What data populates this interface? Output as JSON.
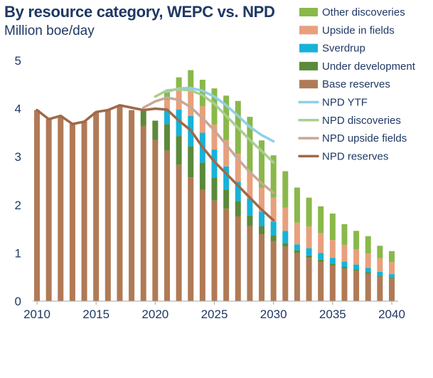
{
  "chart_data": {
    "type": "bar",
    "title": "By resource category,  WEPC vs. NPD",
    "subtitle": "Million boe/day",
    "x": [
      2010,
      2011,
      2012,
      2013,
      2014,
      2015,
      2016,
      2017,
      2018,
      2019,
      2020,
      2021,
      2022,
      2023,
      2024,
      2025,
      2026,
      2027,
      2028,
      2029,
      2030,
      2031,
      2032,
      2033,
      2034,
      2035,
      2036,
      2037,
      2038,
      2039,
      2040
    ],
    "x_ticks": [
      2010,
      2015,
      2020,
      2025,
      2030,
      2035,
      2040
    ],
    "y_ticks": [
      0,
      1,
      2,
      3,
      4,
      5
    ],
    "ylim": [
      0,
      5
    ],
    "bar_series": [
      {
        "name": "Base reserves",
        "color": "#b07a56",
        "values": [
          3.97,
          3.78,
          3.85,
          3.68,
          3.73,
          3.93,
          3.97,
          4.07,
          3.97,
          3.64,
          3.35,
          3.13,
          2.83,
          2.57,
          2.31,
          2.09,
          1.92,
          1.76,
          1.56,
          1.39,
          1.25,
          1.13,
          1.0,
          0.9,
          0.82,
          0.74,
          0.68,
          0.63,
          0.57,
          0.51,
          0.47
        ]
      },
      {
        "name": "Under development",
        "color": "#5a8a3a",
        "values": [
          0,
          0,
          0,
          0,
          0,
          0,
          0,
          0,
          0,
          0.33,
          0.4,
          0.55,
          0.6,
          0.65,
          0.57,
          0.48,
          0.4,
          0.32,
          0.22,
          0.17,
          0.12,
          0.08,
          0.06,
          0.05,
          0.04,
          0.04,
          0.03,
          0.03,
          0.03,
          0.02,
          0.02
        ]
      },
      {
        "name": "Sverdrup",
        "color": "#17b2d8",
        "values": [
          0,
          0,
          0,
          0,
          0,
          0,
          0,
          0,
          0,
          0,
          0,
          0.28,
          0.55,
          0.63,
          0.62,
          0.58,
          0.48,
          0.4,
          0.35,
          0.3,
          0.28,
          0.25,
          0.12,
          0.15,
          0.14,
          0.12,
          0.11,
          0.1,
          0.09,
          0.08,
          0.07
        ]
      },
      {
        "name": "Upside in fields",
        "color": "#e8a07c",
        "values": [
          0,
          0,
          0,
          0,
          0,
          0,
          0,
          0,
          0,
          0,
          0,
          0.22,
          0.42,
          0.55,
          0.55,
          0.52,
          0.55,
          0.58,
          0.55,
          0.5,
          0.5,
          0.48,
          0.45,
          0.45,
          0.42,
          0.37,
          0.35,
          0.32,
          0.3,
          0.28,
          0.25
        ]
      },
      {
        "name": "Other discoveries",
        "color": "#8ab84a",
        "values": [
          0,
          0,
          0,
          0,
          0,
          0,
          0,
          0,
          0,
          0,
          0,
          0.2,
          0.25,
          0.4,
          0.55,
          0.75,
          0.92,
          1.1,
          1.15,
          0.98,
          0.88,
          0.76,
          0.73,
          0.6,
          0.55,
          0.55,
          0.43,
          0.38,
          0.36,
          0.26,
          0.23
        ]
      }
    ],
    "line_series": [
      {
        "name": "NPD YTF",
        "color": "#8fd0e6",
        "x": [
          2021,
          2022,
          2023,
          2024,
          2025,
          2026,
          2027,
          2028,
          2029,
          2030
        ],
        "values": [
          4.35,
          4.42,
          4.43,
          4.37,
          4.25,
          4.07,
          3.85,
          3.62,
          3.45,
          3.32
        ]
      },
      {
        "name": "NPD discoveries",
        "color": "#a9cf8f",
        "x": [
          2020,
          2021,
          2022,
          2023,
          2024,
          2025,
          2026,
          2027,
          2028,
          2029,
          2030
        ],
        "values": [
          4.25,
          4.38,
          4.4,
          4.38,
          4.28,
          4.1,
          3.85,
          3.6,
          3.35,
          3.12,
          2.88
        ]
      },
      {
        "name": "NPD upside fields",
        "color": "#c8a896",
        "x": [
          2019,
          2020,
          2021,
          2022,
          2023,
          2024,
          2025,
          2026,
          2027,
          2028,
          2029,
          2030
        ],
        "values": [
          4.02,
          4.15,
          4.23,
          4.18,
          4.03,
          3.8,
          3.55,
          3.25,
          2.95,
          2.68,
          2.45,
          2.25
        ]
      },
      {
        "name": "NPD reserves",
        "color": "#a06848",
        "x": [
          2010,
          2011,
          2012,
          2013,
          2014,
          2015,
          2016,
          2017,
          2018,
          2019,
          2020,
          2021,
          2022,
          2023,
          2024,
          2025,
          2026,
          2027,
          2028,
          2029,
          2030
        ],
        "values": [
          3.97,
          3.78,
          3.85,
          3.68,
          3.73,
          3.93,
          3.97,
          4.07,
          4.02,
          3.97,
          4.0,
          3.98,
          3.75,
          3.55,
          3.2,
          2.9,
          2.65,
          2.4,
          2.15,
          1.9,
          1.68
        ]
      }
    ],
    "legend": {
      "placement": "top-right",
      "items": [
        {
          "label": "Other discoveries",
          "kind": "bar",
          "color": "#8ab84a"
        },
        {
          "label": "Upside in fields",
          "kind": "bar",
          "color": "#e8a07c"
        },
        {
          "label": "Sverdrup",
          "kind": "bar",
          "color": "#17b2d8"
        },
        {
          "label": "Under development",
          "kind": "bar",
          "color": "#5a8a3a"
        },
        {
          "label": "Base reserves",
          "kind": "bar",
          "color": "#b07a56"
        },
        {
          "label": "NPD YTF",
          "kind": "line",
          "color": "#8fd0e6"
        },
        {
          "label": "NPD discoveries",
          "kind": "line",
          "color": "#a9cf8f"
        },
        {
          "label": "NPD upside fields",
          "kind": "line",
          "color": "#c8a896"
        },
        {
          "label": "NPD reserves",
          "kind": "line",
          "color": "#a06848"
        }
      ]
    }
  }
}
